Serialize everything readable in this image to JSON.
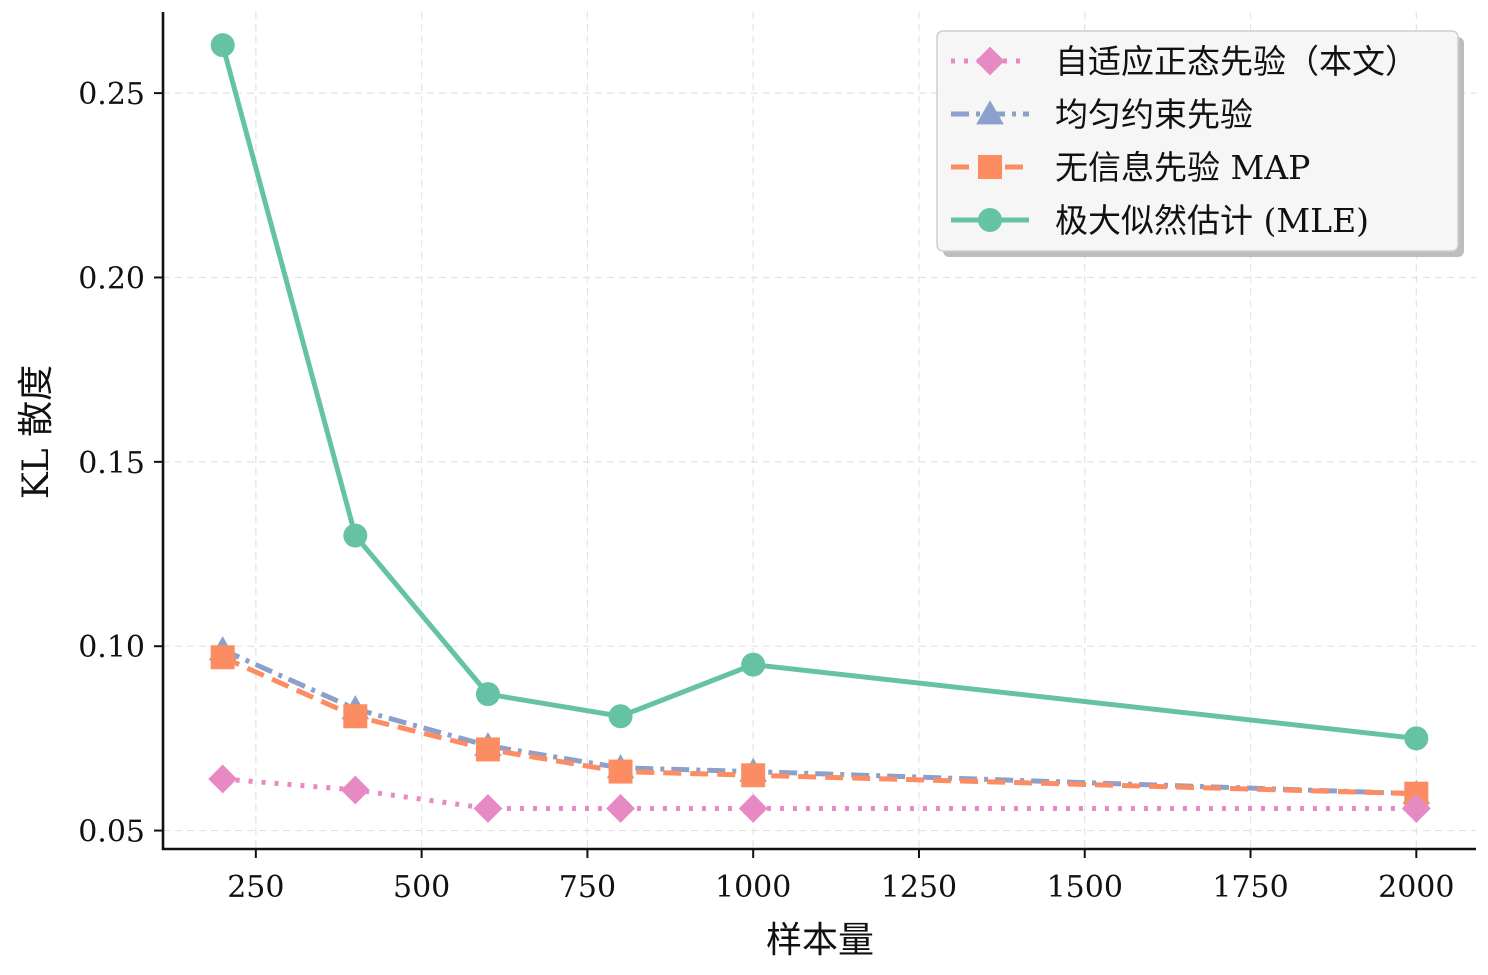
{
  "chart_data": {
    "type": "line",
    "title": "",
    "xlabel": "样本量",
    "ylabel": "KL 散度",
    "x": [
      200,
      400,
      600,
      800,
      1000,
      2000
    ],
    "xlim": [
      110,
      2090
    ],
    "ylim": [
      0.045,
      0.272
    ],
    "xticks": [
      250,
      500,
      750,
      1000,
      1250,
      1500,
      1750,
      2000
    ],
    "xtick_labels": [
      "250",
      "500",
      "750",
      "1000",
      "1250",
      "1500",
      "1750",
      "2000"
    ],
    "yticks": [
      0.05,
      0.1,
      0.15,
      0.2,
      0.25
    ],
    "ytick_labels": [
      "0.05",
      "0.10",
      "0.15",
      "0.20",
      "0.25"
    ],
    "grid": true,
    "legend_position": "top-right",
    "series": [
      {
        "name": "自适应正态先验（本文）",
        "values": [
          0.064,
          0.061,
          0.056,
          0.056,
          0.056,
          0.056
        ],
        "color": "#e78ac3",
        "marker": "diamond",
        "line_style": "dotted"
      },
      {
        "name": "均匀约束先验",
        "values": [
          0.099,
          0.083,
          0.073,
          0.067,
          0.066,
          0.06
        ],
        "color": "#8da0cb",
        "marker": "triangle",
        "line_style": "dashdot"
      },
      {
        "name": "无信息先验 MAP",
        "values": [
          0.097,
          0.081,
          0.072,
          0.066,
          0.065,
          0.06
        ],
        "color": "#fc8d62",
        "marker": "square",
        "line_style": "dashed"
      },
      {
        "name": "极大似然估计 (MLE)",
        "values": [
          0.263,
          0.13,
          0.087,
          0.081,
          0.095,
          0.075
        ],
        "color": "#66c2a5",
        "marker": "circle",
        "line_style": "solid"
      }
    ]
  }
}
